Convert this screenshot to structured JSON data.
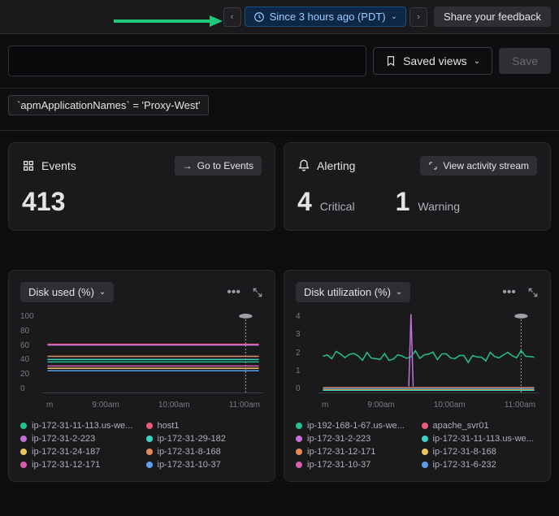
{
  "topbar": {
    "time_label": "Since 3 hours ago (PDT)",
    "feedback": "Share your feedback"
  },
  "toolbar": {
    "saved_views": "Saved views",
    "save": "Save"
  },
  "filter": {
    "chip": "`apmApplicationNames` = 'Proxy-West'"
  },
  "events_card": {
    "title": "Events",
    "action": "Go to Events",
    "count": "413"
  },
  "alert_card": {
    "title": "Alerting",
    "action": "View activity stream",
    "critical_n": "4",
    "critical_l": "Critical",
    "warning_n": "1",
    "warning_l": "Warning"
  },
  "chart1": {
    "title": "Disk used (%)",
    "ylim": [
      0,
      100
    ],
    "yticks": [
      "100",
      "80",
      "60",
      "40",
      "20",
      "0"
    ],
    "xticks": [
      "m",
      "9:00am",
      "10:00am",
      "11:00am"
    ],
    "series": [
      {
        "label": "ip-172-31-11-113.us-we...",
        "color": "#1fc28d",
        "y": 38
      },
      {
        "label": "host1",
        "color": "#e85d75",
        "y": 60
      },
      {
        "label": "ip-172-31-2-223",
        "color": "#c270d6",
        "y": 59
      },
      {
        "label": "ip-172-31-29-182",
        "color": "#3bd4c4",
        "y": 41
      },
      {
        "label": "ip-172-31-24-187",
        "color": "#e8c85d",
        "y": 30
      },
      {
        "label": "ip-172-31-8-168",
        "color": "#e88c5d",
        "y": 45
      },
      {
        "label": "ip-172-31-12-171",
        "color": "#d65db0",
        "y": 33
      },
      {
        "label": "ip-172-31-10-37",
        "color": "#5d9ee8",
        "y": 27
      }
    ]
  },
  "chart2": {
    "title": "Disk utilization (%)",
    "ylim": [
      0,
      4
    ],
    "yticks": [
      "4",
      "3",
      "2",
      "1",
      "0"
    ],
    "xticks": [
      "m",
      "9:00am",
      "10:00am",
      "11:00am"
    ],
    "series": [
      {
        "label": "ip-192-168-1-67.us-we...",
        "color": "#1fc28d"
      },
      {
        "label": "apache_svr01",
        "color": "#e85d75"
      },
      {
        "label": "ip-172-31-2-223",
        "color": "#c270d6"
      },
      {
        "label": "ip-172-31-11-113.us-we...",
        "color": "#3bd4c4"
      },
      {
        "label": "ip-172-31-12-171",
        "color": "#e88c5d"
      },
      {
        "label": "ip-172-31-8-168",
        "color": "#e8c85d"
      },
      {
        "label": "ip-172-31-10-37",
        "color": "#d65db0"
      },
      {
        "label": "ip-172-31-6-232",
        "color": "#5d9ee8"
      }
    ],
    "spike_x": 0.42,
    "spike_color": "#c270d6",
    "main_line_color": "#1fc28d",
    "main_line_y": 2
  },
  "colors": {
    "arrow": "#1fc979",
    "scrub": "#a0a0a8"
  }
}
